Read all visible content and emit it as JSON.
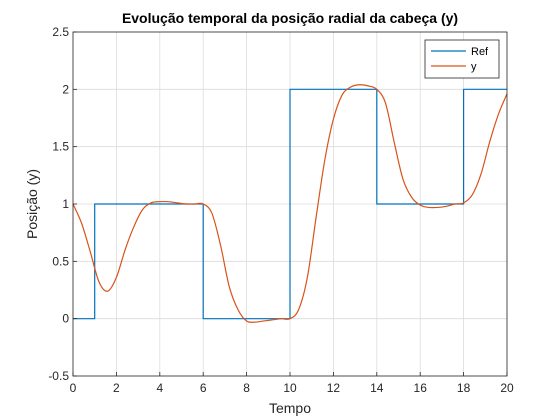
{
  "chart_data": {
    "type": "line",
    "title": "Evolução temporal da posição radial da cabeça (y)",
    "xlabel": "Tempo",
    "ylabel": "Posição (y)",
    "xlim": [
      0,
      20
    ],
    "ylim": [
      -0.5,
      2.5
    ],
    "xticks": [
      "0",
      "2",
      "4",
      "6",
      "8",
      "10",
      "12",
      "14",
      "16",
      "18",
      "20"
    ],
    "yticks": [
      "-0.5",
      "0",
      "0.5",
      "1",
      "1.5",
      "2",
      "2.5"
    ],
    "grid": true,
    "legend_position": "top-right",
    "series": [
      {
        "name": "Ref",
        "color": "#0072BD",
        "step": true,
        "x": [
          0,
          1,
          1,
          6,
          6,
          10,
          10,
          14,
          14,
          18,
          18,
          20
        ],
        "y": [
          0,
          0,
          1,
          1,
          0,
          0,
          2,
          2,
          1,
          1,
          2,
          2
        ]
      },
      {
        "name": "y",
        "color": "#D95319",
        "step": false,
        "x": [
          0,
          0.4,
          0.8,
          1.2,
          1.6,
          2.0,
          2.4,
          2.8,
          3.2,
          3.6,
          4.0,
          4.4,
          4.8,
          5.2,
          5.6,
          6.0,
          6.4,
          6.8,
          7.2,
          7.6,
          8.0,
          8.4,
          8.8,
          9.2,
          9.6,
          10.0,
          10.4,
          10.8,
          11.2,
          11.6,
          12.0,
          12.4,
          12.8,
          13.2,
          13.6,
          14.0,
          14.4,
          14.8,
          15.2,
          15.6,
          16.0,
          16.4,
          16.8,
          17.2,
          17.6,
          18.0,
          18.4,
          18.8,
          19.2,
          19.6,
          20.0
        ],
        "y": [
          1.0,
          0.83,
          0.58,
          0.32,
          0.24,
          0.36,
          0.6,
          0.8,
          0.95,
          1.01,
          1.02,
          1.02,
          1.01,
          1.0,
          1.0,
          1.0,
          0.92,
          0.64,
          0.28,
          0.08,
          -0.02,
          -0.03,
          -0.02,
          -0.01,
          0.0,
          0.0,
          0.08,
          0.36,
          0.88,
          1.38,
          1.74,
          1.95,
          2.02,
          2.04,
          2.03,
          2.0,
          1.88,
          1.54,
          1.22,
          1.06,
          0.99,
          0.97,
          0.97,
          0.98,
          1.0,
          1.01,
          1.08,
          1.26,
          1.54,
          1.78,
          1.96
        ]
      }
    ]
  }
}
